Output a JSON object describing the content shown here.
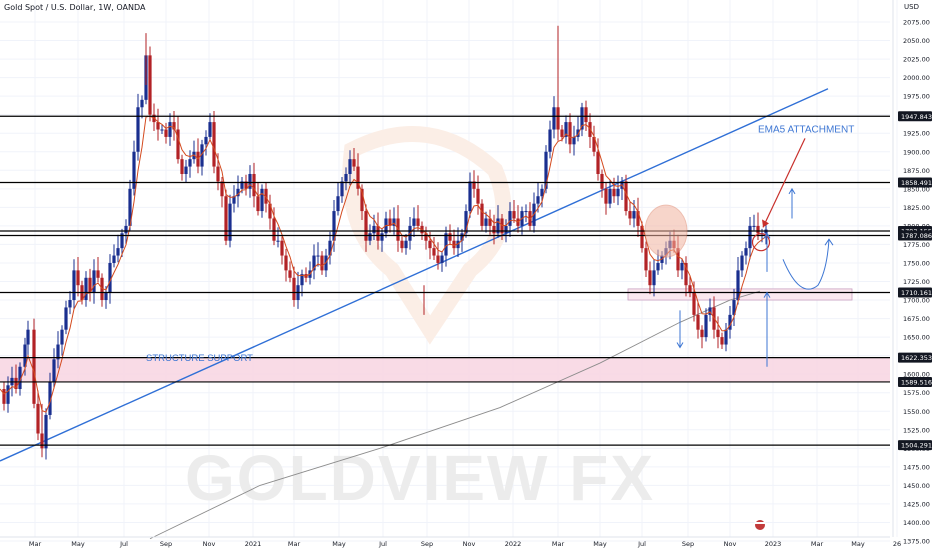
{
  "header": {
    "title": "Gold Spot / U.S. Dollar, 1W, OANDA",
    "currency": "USD"
  },
  "watermark": {
    "text": "GOLDVIEW FX"
  },
  "colors": {
    "bull": "#1a2f8f",
    "bear": "#b22226",
    "ema": "#d44a1e",
    "sma": "#8c8c8c",
    "trendline": "#2f6fd6",
    "level": "#000000",
    "label_bg": "#131722",
    "support_zone": "#f8d7e3",
    "annotation": "#3d76d3",
    "arrow_red": "#c8302c",
    "circle_fill": "#f2b3a0",
    "grid": "#f0f3fa"
  },
  "chart_data": {
    "type": "candlestick",
    "title": "Gold Spot / U.S. Dollar, 1W, OANDA",
    "ylim": [
      1375,
      2075
    ],
    "y_ticks": [
      2075,
      2050,
      2025,
      2000,
      1975,
      1950,
      1925,
      1900,
      1875,
      1850,
      1825,
      1800,
      1775,
      1750,
      1725,
      1700,
      1675,
      1650,
      1625,
      1600,
      1575,
      1550,
      1525,
      1500,
      1475,
      1450,
      1425,
      1400,
      1375
    ],
    "x_ticks": [
      "Mar",
      "May",
      "Jul",
      "Sep",
      "Nov",
      "2021",
      "Mar",
      "May",
      "Jul",
      "Sep",
      "Nov",
      "2022",
      "Mar",
      "May",
      "Jul",
      "Sep",
      "Nov",
      "2023",
      "Mar",
      "May",
      "26"
    ],
    "close_path": [
      [
        0,
        1580
      ],
      [
        4,
        1560
      ],
      [
        8,
        1585
      ],
      [
        12,
        1595
      ],
      [
        16,
        1580
      ],
      [
        20,
        1610
      ],
      [
        25,
        1640
      ],
      [
        28,
        1660
      ],
      [
        34,
        1560
      ],
      [
        38,
        1520
      ],
      [
        42,
        1500
      ],
      [
        46,
        1545
      ],
      [
        50,
        1590
      ],
      [
        54,
        1620
      ],
      [
        58,
        1640
      ],
      [
        62,
        1660
      ],
      [
        66,
        1690
      ],
      [
        70,
        1700
      ],
      [
        74,
        1740
      ],
      [
        78,
        1720
      ],
      [
        82,
        1700
      ],
      [
        86,
        1730
      ],
      [
        90,
        1710
      ],
      [
        94,
        1740
      ],
      [
        98,
        1730
      ],
      [
        102,
        1700
      ],
      [
        106,
        1710
      ],
      [
        110,
        1750
      ],
      [
        114,
        1760
      ],
      [
        118,
        1770
      ],
      [
        122,
        1790
      ],
      [
        126,
        1800
      ],
      [
        130,
        1850
      ],
      [
        134,
        1900
      ],
      [
        138,
        1960
      ],
      [
        142,
        1970
      ],
      [
        146,
        2030
      ],
      [
        150,
        1950
      ],
      [
        154,
        1940
      ],
      [
        158,
        1930
      ],
      [
        162,
        1930
      ],
      [
        166,
        1920
      ],
      [
        170,
        1940
      ],
      [
        174,
        1930
      ],
      [
        178,
        1890
      ],
      [
        182,
        1870
      ],
      [
        186,
        1880
      ],
      [
        190,
        1890
      ],
      [
        194,
        1900
      ],
      [
        198,
        1880
      ],
      [
        202,
        1910
      ],
      [
        206,
        1920
      ],
      [
        210,
        1940
      ],
      [
        214,
        1880
      ],
      [
        218,
        1860
      ],
      [
        222,
        1840
      ],
      [
        226,
        1780
      ],
      [
        230,
        1830
      ],
      [
        234,
        1840
      ],
      [
        238,
        1850
      ],
      [
        242,
        1860
      ],
      [
        246,
        1850
      ],
      [
        250,
        1870
      ],
      [
        254,
        1840
      ],
      [
        258,
        1820
      ],
      [
        262,
        1850
      ],
      [
        266,
        1830
      ],
      [
        270,
        1810
      ],
      [
        274,
        1780
      ],
      [
        278,
        1780
      ],
      [
        282,
        1760
      ],
      [
        286,
        1740
      ],
      [
        290,
        1730
      ],
      [
        294,
        1700
      ],
      [
        298,
        1720
      ],
      [
        302,
        1735
      ],
      [
        306,
        1730
      ],
      [
        310,
        1740
      ],
      [
        314,
        1760
      ],
      [
        318,
        1760
      ],
      [
        322,
        1740
      ],
      [
        326,
        1760
      ],
      [
        330,
        1780
      ],
      [
        334,
        1820
      ],
      [
        338,
        1840
      ],
      [
        342,
        1860
      ],
      [
        346,
        1870
      ],
      [
        350,
        1890
      ],
      [
        354,
        1880
      ],
      [
        358,
        1850
      ],
      [
        362,
        1820
      ],
      [
        366,
        1780
      ],
      [
        370,
        1790
      ],
      [
        374,
        1800
      ],
      [
        378,
        1780
      ],
      [
        382,
        1790
      ],
      [
        386,
        1810
      ],
      [
        390,
        1800
      ],
      [
        394,
        1810
      ],
      [
        398,
        1780
      ],
      [
        402,
        1770
      ],
      [
        406,
        1780
      ],
      [
        410,
        1800
      ],
      [
        414,
        1810
      ],
      [
        418,
        1800
      ],
      [
        422,
        1790
      ],
      [
        426,
        1780
      ],
      [
        430,
        1770
      ],
      [
        434,
        1760
      ],
      [
        438,
        1750
      ],
      [
        442,
        1760
      ],
      [
        446,
        1790
      ],
      [
        450,
        1780
      ],
      [
        454,
        1770
      ],
      [
        458,
        1780
      ],
      [
        462,
        1790
      ],
      [
        466,
        1820
      ],
      [
        470,
        1860
      ],
      [
        474,
        1850
      ],
      [
        478,
        1830
      ],
      [
        482,
        1800
      ],
      [
        486,
        1810
      ],
      [
        490,
        1800
      ],
      [
        494,
        1790
      ],
      [
        498,
        1810
      ],
      [
        502,
        1790
      ],
      [
        506,
        1800
      ],
      [
        510,
        1820
      ],
      [
        514,
        1810
      ],
      [
        518,
        1800
      ],
      [
        522,
        1820
      ],
      [
        526,
        1820
      ],
      [
        530,
        1800
      ],
      [
        534,
        1830
      ],
      [
        538,
        1840
      ],
      [
        542,
        1850
      ],
      [
        546,
        1900
      ],
      [
        550,
        1930
      ],
      [
        554,
        1960
      ],
      [
        558,
        1930
      ],
      [
        562,
        1920
      ],
      [
        566,
        1940
      ],
      [
        570,
        1910
      ],
      [
        574,
        1920
      ],
      [
        578,
        1930
      ],
      [
        582,
        1960
      ],
      [
        586,
        1940
      ],
      [
        590,
        1920
      ],
      [
        594,
        1900
      ],
      [
        598,
        1870
      ],
      [
        602,
        1850
      ],
      [
        606,
        1830
      ],
      [
        610,
        1850
      ],
      [
        614,
        1840
      ],
      [
        618,
        1850
      ],
      [
        622,
        1860
      ],
      [
        626,
        1820
      ],
      [
        630,
        1810
      ],
      [
        634,
        1820
      ],
      [
        638,
        1800
      ],
      [
        642,
        1770
      ],
      [
        646,
        1740
      ],
      [
        650,
        1720
      ],
      [
        654,
        1740
      ],
      [
        658,
        1750
      ],
      [
        662,
        1760
      ],
      [
        666,
        1770
      ],
      [
        670,
        1780
      ],
      [
        674,
        1770
      ],
      [
        678,
        1740
      ],
      [
        682,
        1750
      ],
      [
        686,
        1720
      ],
      [
        690,
        1710
      ],
      [
        694,
        1680
      ],
      [
        698,
        1660
      ],
      [
        702,
        1650
      ],
      [
        706,
        1680
      ],
      [
        710,
        1690
      ],
      [
        714,
        1660
      ],
      [
        718,
        1650
      ],
      [
        722,
        1640
      ],
      [
        726,
        1660
      ],
      [
        730,
        1680
      ],
      [
        734,
        1700
      ],
      [
        738,
        1740
      ],
      [
        742,
        1760
      ],
      [
        746,
        1770
      ],
      [
        750,
        1800
      ],
      [
        754,
        1800
      ],
      [
        758,
        1790
      ],
      [
        762,
        1790
      ],
      [
        766,
        1795
      ]
    ],
    "horizontal_levels": [
      1947.843,
      1858.491,
      1793.155,
      1787.086,
      1710.161,
      1622.353,
      1589.516,
      1504.291
    ],
    "price_labels": [
      "1947.843",
      "1858.491",
      "1793.155",
      "1787.086",
      "1710.161",
      "1622.353",
      "1589.516",
      "1504.291"
    ],
    "support_zone": [
      1589.516,
      1622.353
    ],
    "resistance_zone": [
      1700,
      1715
    ],
    "trendline": [
      [
        0,
        1483
      ],
      [
        828,
        1985
      ]
    ],
    "annotations": [
      "EMA5 ATTACHMENT",
      "STRUCTURE SUPPORT"
    ]
  }
}
